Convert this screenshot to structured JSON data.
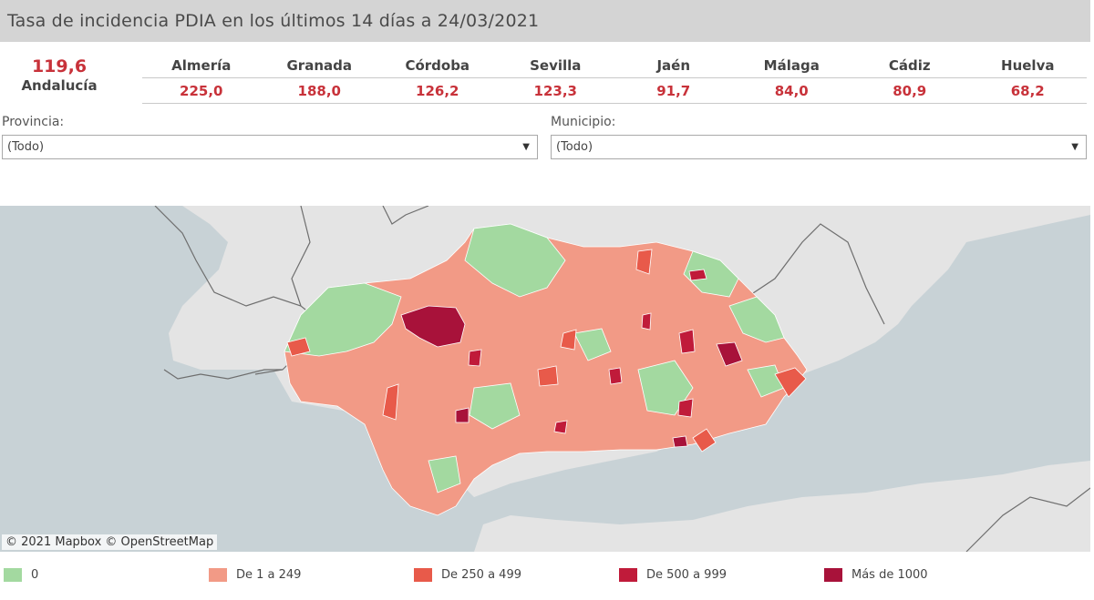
{
  "header": {
    "title": "Tasa de incidencia PDIA en los últimos 14 días a 24/03/2021"
  },
  "total": {
    "value": "119,6",
    "name": "Andalucía"
  },
  "provinces": [
    {
      "name": "Almería",
      "value": "225,0"
    },
    {
      "name": "Granada",
      "value": "188,0"
    },
    {
      "name": "Córdoba",
      "value": "126,2"
    },
    {
      "name": "Sevilla",
      "value": "123,3"
    },
    {
      "name": "Jaén",
      "value": "91,7"
    },
    {
      "name": "Málaga",
      "value": "84,0"
    },
    {
      "name": "Cádiz",
      "value": "80,9"
    },
    {
      "name": "Huelva",
      "value": "68,2"
    }
  ],
  "filters": {
    "provincia": {
      "label": "Provincia:",
      "value": "(Todo)"
    },
    "municipio": {
      "label": "Municipio:",
      "value": "(Todo)"
    }
  },
  "map": {
    "attribution": "© 2021 Mapbox  © OpenStreetMap",
    "colors": {
      "sea": "#c8d2d6",
      "land": "#e4e4e4",
      "border": "#6e6e6e"
    }
  },
  "legend": [
    {
      "label": "0",
      "color": "#a3d9a0"
    },
    {
      "label": "De 1 a 249",
      "color": "#f29a86"
    },
    {
      "label": "De 250 a 499",
      "color": "#e85a4a"
    },
    {
      "label": "De 500 a 999",
      "color": "#c01b3a"
    },
    {
      "label": "Más de 1000",
      "color": "#a8123a"
    }
  ]
}
